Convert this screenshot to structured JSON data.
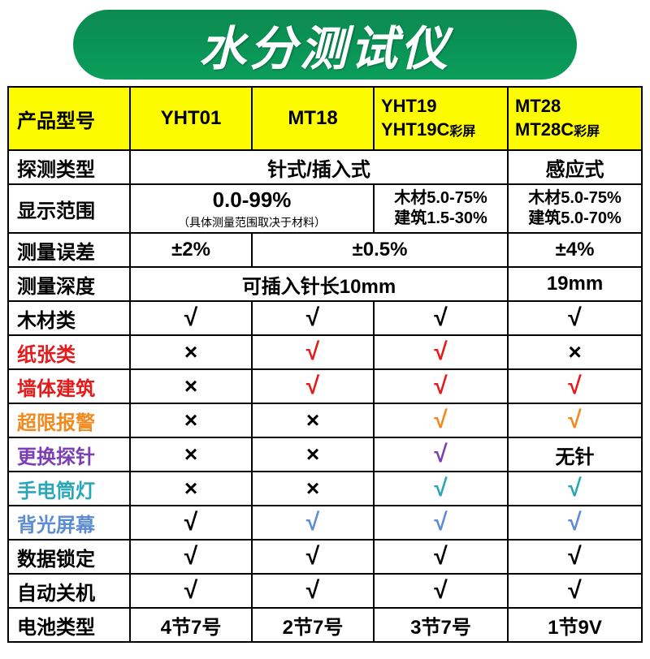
{
  "title": "水分测试仪",
  "colors": {
    "header_bg": "#fdfb00",
    "banner_bg": "#0b9355",
    "black": "#000000",
    "red": "#e31b1b",
    "orange": "#f08a1f",
    "purple": "#7b3fb5",
    "teal": "#2aa7b7",
    "lightblue": "#5d8dd0"
  },
  "header": {
    "col0": "产品型号",
    "col1": "YHT01",
    "col2": "MT18",
    "col3a": "YHT19",
    "col3b": "YHT19C",
    "col3b_suffix": "彩屏",
    "col4a": "MT28",
    "col4b": "MT28C",
    "col4b_suffix": "彩屏"
  },
  "rows": {
    "detect_type": {
      "label": "探测类型",
      "v1": "针式/插入式",
      "v2": "感应式"
    },
    "display_range": {
      "label": "显示范围",
      "v1_main": "0.0-99%",
      "v1_note": "（具体测量范围取决于材料）",
      "v2_l1": "木材5.0-75%",
      "v2_l2": "建筑1.5-30%",
      "v3_l1": "木材5.0-75%",
      "v3_l2": "建筑5.0-70%"
    },
    "error": {
      "label": "测量误差",
      "v1": "±2%",
      "v2": "±0.5%",
      "v3": "±4%"
    },
    "depth": {
      "label": "测量深度",
      "v1": "可插入针长10mm",
      "v2": "19mm"
    },
    "wood": {
      "label": "木材类",
      "c1": "√",
      "c2": "√",
      "c3": "√",
      "c4": "√"
    },
    "paper": {
      "label": "纸张类",
      "c1": "×",
      "c2": "√",
      "c3": "√",
      "c4": "×"
    },
    "wall": {
      "label": "墙体建筑",
      "c1": "×",
      "c2": "√",
      "c3": "√",
      "c4": "√"
    },
    "alarm": {
      "label": "超限报警",
      "c1": "×",
      "c2": "×",
      "c3": "√",
      "c4": "√"
    },
    "probe": {
      "label": "更换探针",
      "c1": "×",
      "c2": "×",
      "c3": "√",
      "c4": "无针"
    },
    "flash": {
      "label": "手电筒灯",
      "c1": "×",
      "c2": "×",
      "c3": "√",
      "c4": "√"
    },
    "backlit": {
      "label": "背光屏幕",
      "c1": "√",
      "c2": "√",
      "c3": "√",
      "c4": "√"
    },
    "lock": {
      "label": "数据锁定",
      "c1": "√",
      "c2": "√",
      "c3": "√",
      "c4": "√"
    },
    "autooff": {
      "label": "自动关机",
      "c1": "√",
      "c2": "√",
      "c3": "√",
      "c4": "√"
    },
    "battery": {
      "label": "电池类型",
      "c1": "4节7号",
      "c2": "2节7号",
      "c3": "3节7号",
      "c4": "1节9V"
    }
  },
  "label_colors": {
    "detect_type": "#000000",
    "display_range": "#000000",
    "error": "#000000",
    "depth": "#000000",
    "wood": "#000000",
    "paper": "#e31b1b",
    "wall": "#e31b1b",
    "alarm": "#f08a1f",
    "probe": "#7b3fb5",
    "flash": "#2aa7b7",
    "backlit": "#5d8dd0",
    "lock": "#000000",
    "autooff": "#000000",
    "battery": "#000000"
  },
  "check_colors": {
    "wood": {
      "c1": "#000000",
      "c2": "#000000",
      "c3": "#000000",
      "c4": "#000000"
    },
    "paper": {
      "c1": "#000000",
      "c2": "#e31b1b",
      "c3": "#e31b1b",
      "c4": "#000000"
    },
    "wall": {
      "c1": "#000000",
      "c2": "#e31b1b",
      "c3": "#e31b1b",
      "c4": "#e31b1b"
    },
    "alarm": {
      "c1": "#000000",
      "c2": "#000000",
      "c3": "#f08a1f",
      "c4": "#f08a1f"
    },
    "probe": {
      "c1": "#000000",
      "c2": "#000000",
      "c3": "#7b3fb5",
      "c4": "#000000"
    },
    "flash": {
      "c1": "#000000",
      "c2": "#000000",
      "c3": "#2aa7b7",
      "c4": "#2aa7b7"
    },
    "backlit": {
      "c1": "#000000",
      "c2": "#5d8dd0",
      "c3": "#5d8dd0",
      "c4": "#5d8dd0"
    },
    "lock": {
      "c1": "#000000",
      "c2": "#000000",
      "c3": "#000000",
      "c4": "#000000"
    },
    "autooff": {
      "c1": "#000000",
      "c2": "#000000",
      "c3": "#000000",
      "c4": "#000000"
    }
  }
}
